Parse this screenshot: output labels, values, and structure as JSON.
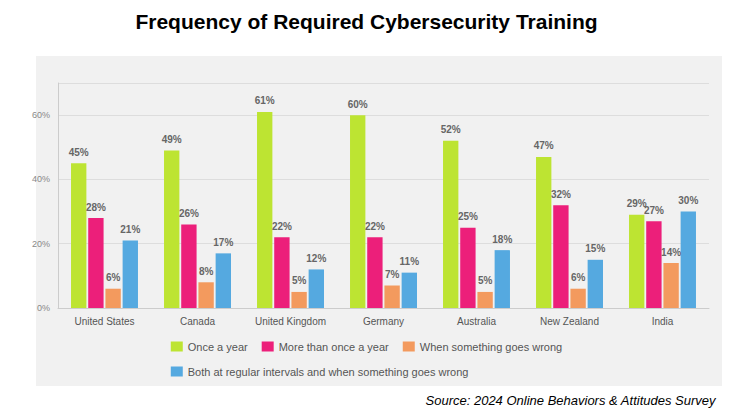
{
  "chart_data": {
    "type": "bar",
    "title": "Frequency of Required Cybersecurity Training",
    "source": "Source: 2024 Online Behaviors & Attitudes Survey",
    "categories": [
      "United States",
      "Canada",
      "United Kingdom",
      "Germany",
      "Australia",
      "New Zealand",
      "India"
    ],
    "series": [
      {
        "name": "Once a year",
        "color": "#bde432",
        "values": [
          45,
          49,
          61,
          60,
          52,
          47,
          29
        ],
        "value_labels": [
          "45%",
          "49%",
          "61%",
          "60%",
          "52%",
          "47%",
          "29%"
        ]
      },
      {
        "name": "More than once a year",
        "color": "#ec1f7a",
        "values": [
          28,
          26,
          22,
          22,
          25,
          32,
          27
        ],
        "value_labels": [
          "28%",
          "26%",
          "22%",
          "22%",
          "25%",
          "32%",
          "27%"
        ]
      },
      {
        "name": "When something goes wrong",
        "color": "#f39a5e",
        "values": [
          6,
          8,
          5,
          7,
          5,
          6,
          14
        ],
        "value_labels": [
          "6%",
          "8%",
          "5%",
          "7%",
          "5%",
          "6%",
          "14%"
        ]
      },
      {
        "name": "Both at regular intervals and when something goes wrong",
        "color": "#55a9e0",
        "values": [
          21,
          17,
          12,
          11,
          18,
          15,
          30
        ],
        "value_labels": [
          "21%",
          "17%",
          "12%",
          "11%",
          "18%",
          "15%",
          "30%"
        ]
      }
    ],
    "ylim": [
      0,
      70
    ],
    "yticks": [
      {
        "value": 0,
        "label": "0%"
      },
      {
        "value": 20,
        "label": "20%"
      },
      {
        "value": 40,
        "label": "40%"
      },
      {
        "value": 60,
        "label": "60%"
      }
    ],
    "grid": true,
    "legend": "bottom",
    "data_labels": true
  }
}
